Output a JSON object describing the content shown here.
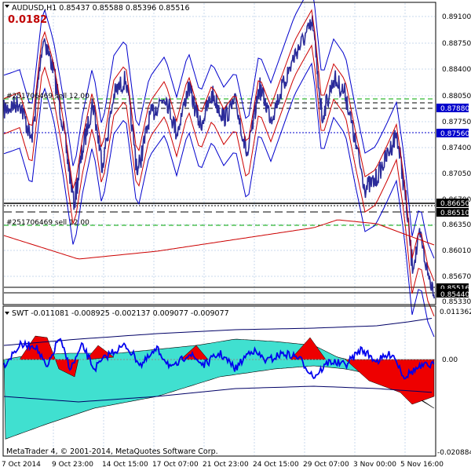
{
  "window": {
    "symbol_line": "AUDUSD,H1  0.85437 0.85588 0.85396 0.85516",
    "spread_value": "0.0182",
    "copyright": "MetaTrader 4, © 2001-2014, MetaQuotes Software Corp."
  },
  "price_panel": {
    "y_ticks": [
      "0.89100",
      "0.88750",
      "0.88400",
      "0.88050",
      "0.87750",
      "0.87400",
      "0.87050",
      "0.86700",
      "0.86350",
      "0.86010",
      "0.85670",
      "0.85330"
    ],
    "price_tags": [
      {
        "text": "0.87880",
        "bg": "#0000cc",
        "fg": "#ffffff"
      },
      {
        "text": "0.87560",
        "bg": "#0000cc",
        "fg": "#ffffff"
      },
      {
        "text": "0.86650",
        "bg": "#000000",
        "fg": "#ffffff"
      },
      {
        "text": "0.86510",
        "bg": "#000000",
        "fg": "#ffffff"
      },
      {
        "text": "0.85516",
        "bg": "#000000",
        "fg": "#ffffff"
      },
      {
        "text": "0.85440",
        "bg": "#000000",
        "fg": "#ffffff"
      }
    ],
    "order_labels": [
      "#251706469 sell 12.00",
      "#251706469 sell 12.00"
    ]
  },
  "indicator_panel": {
    "title": "SWT -0.011081 -0.008925 -0.002137 0.009077 -0.009077",
    "y_ticks": [
      "0.011362",
      "0.00",
      "-0.020884"
    ]
  },
  "x_axis": {
    "labels": [
      "7 Oct 2014",
      "9 Oct 23:00",
      "14 Oct 15:00",
      "17 Oct 07:00",
      "21 Oct 23:00",
      "24 Oct 15:00",
      "29 Oct 07:00",
      "3 Nov 00:00",
      "5 Nov 16:00"
    ]
  },
  "colors": {
    "price": "#2b2b9a",
    "outer_band": "#0000cc",
    "inner_band": "#cc0000",
    "hist_cyan": "#40e0d0",
    "hist_red": "#ee0000",
    "osc_line": "#0000ee",
    "grid": "#c8d8ec",
    "green_dash": "#00aa00"
  }
}
